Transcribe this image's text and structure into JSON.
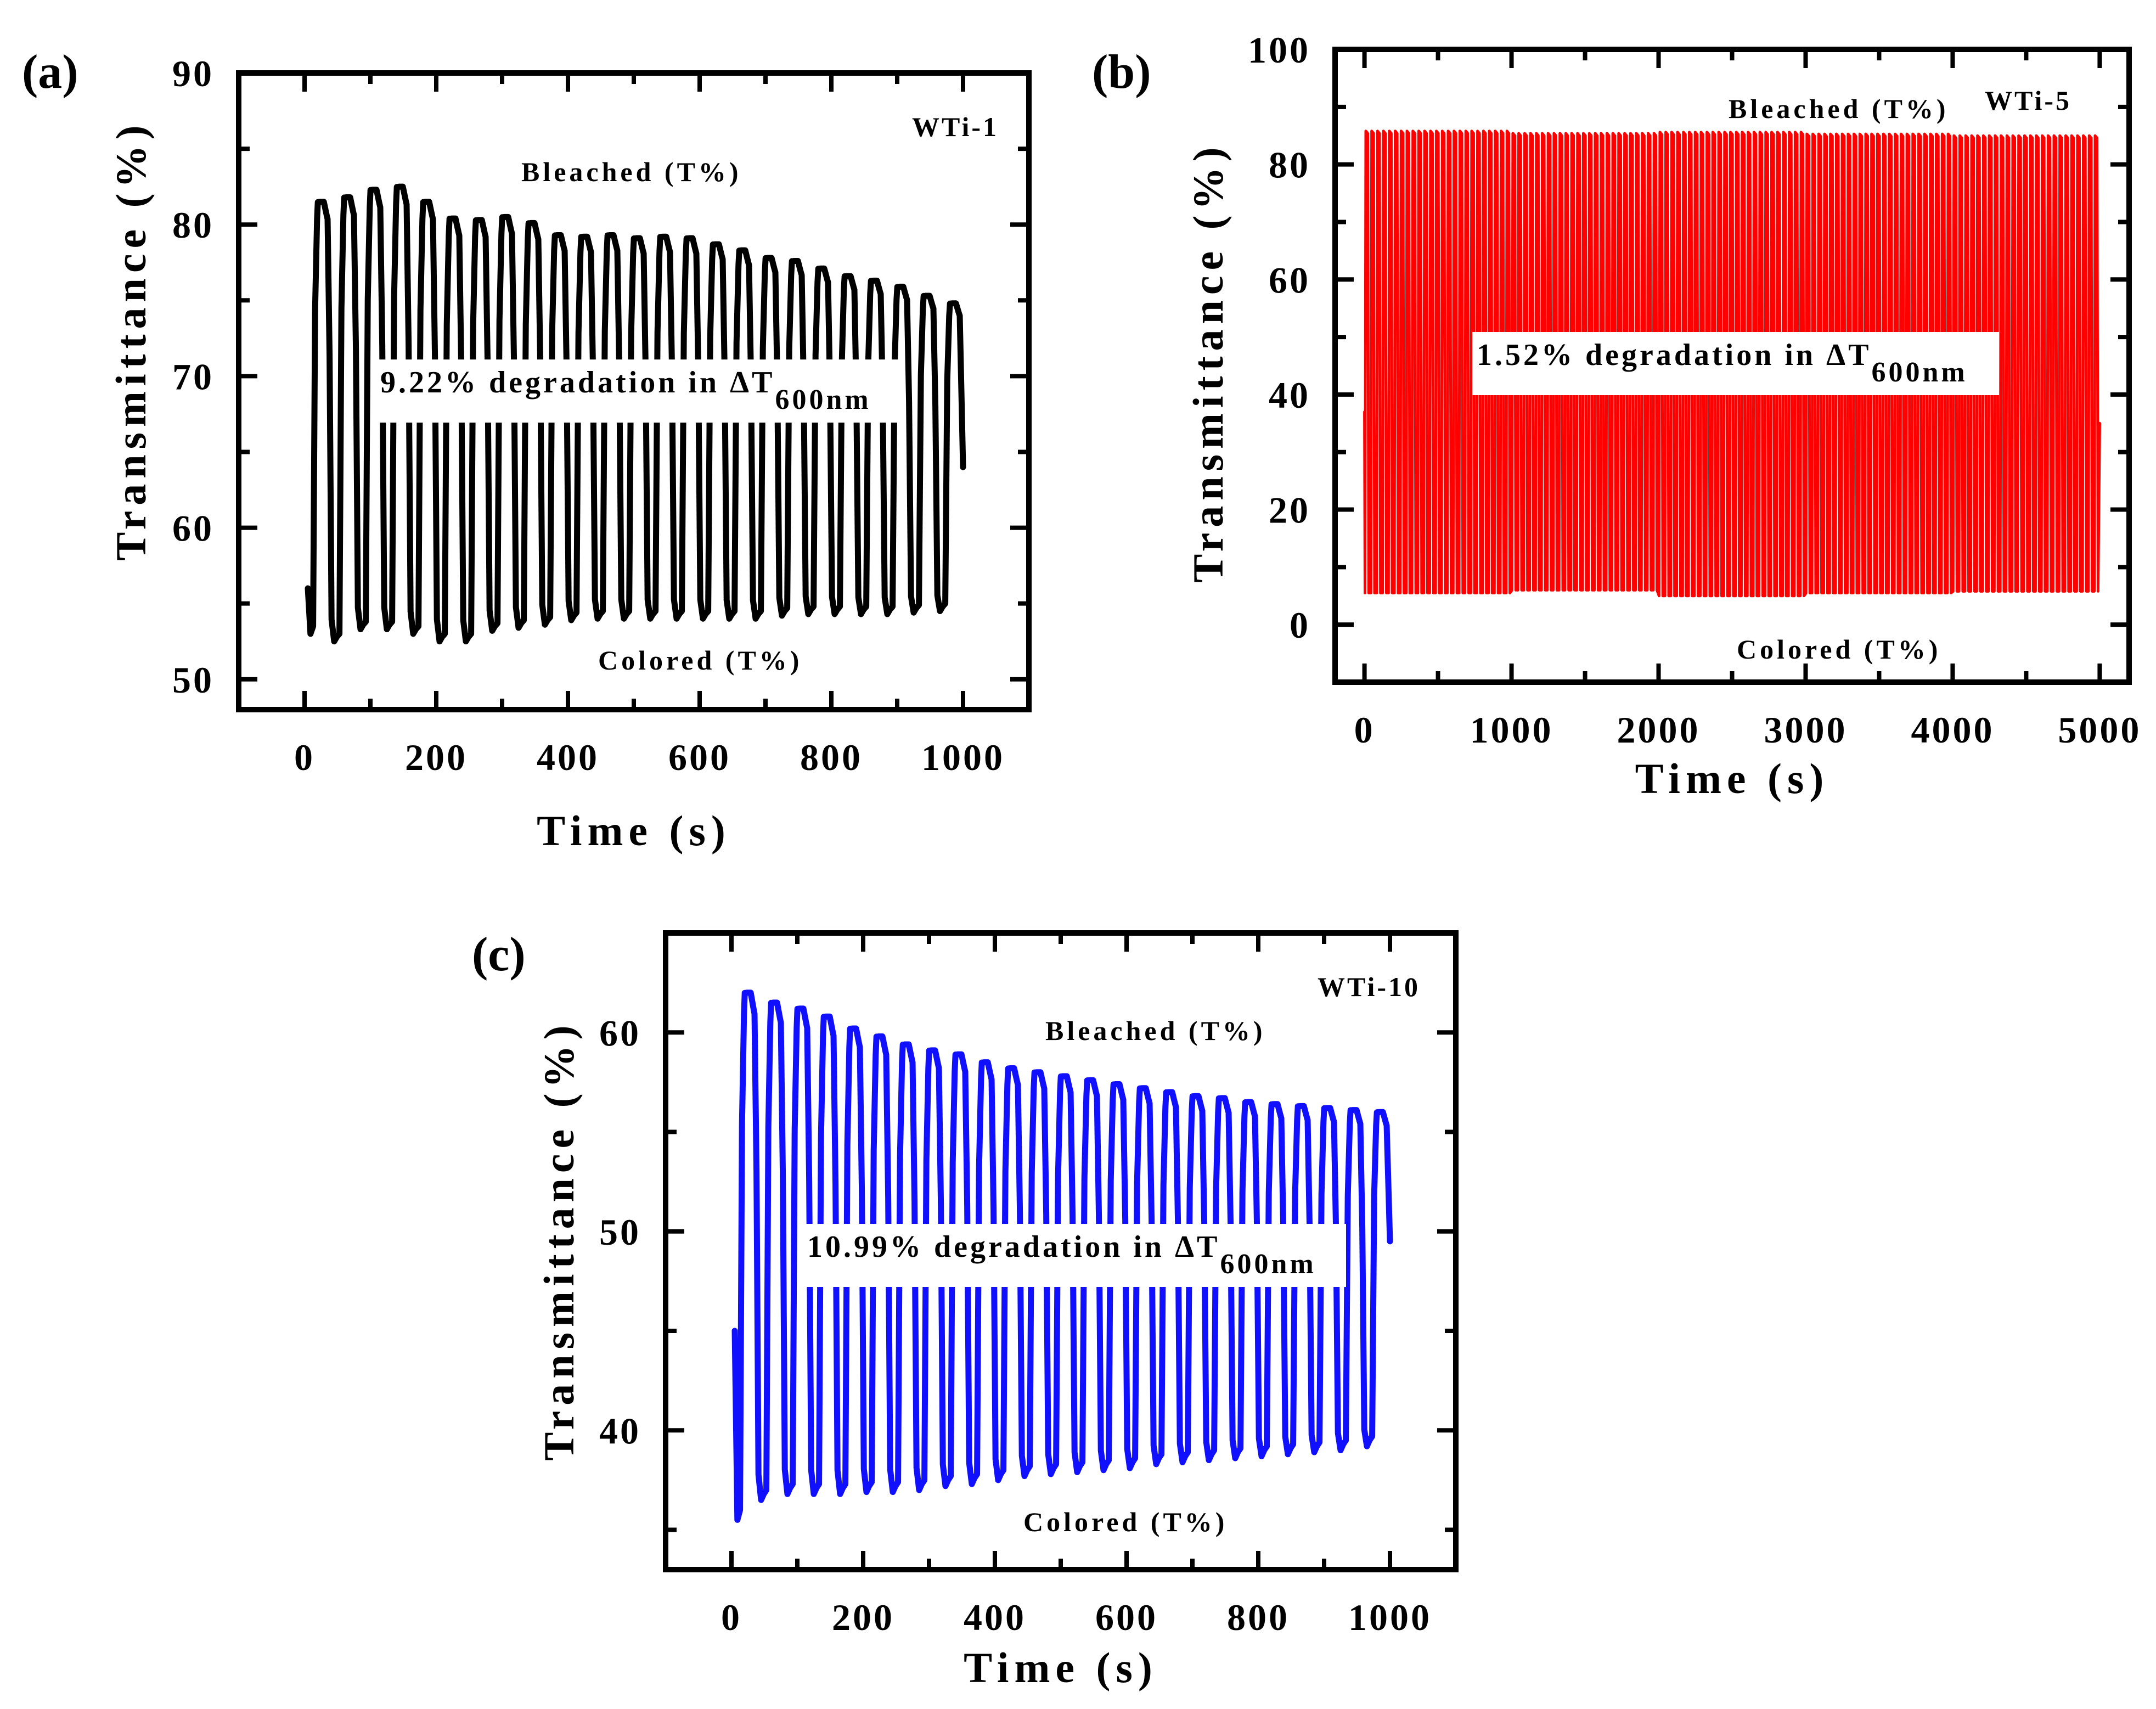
{
  "chart_data": [
    {
      "type": "line",
      "panel_label": "(a)",
      "sample": "WTi-1",
      "xlabel": "Time (s)",
      "ylabel": "Transmittance (%)",
      "xlim": [
        -100,
        1100
      ],
      "ylim": [
        48,
        90
      ],
      "xticks": [
        0,
        200,
        400,
        600,
        800,
        1000
      ],
      "xtick_labels": [
        "0",
        "200",
        "400",
        "600",
        "800",
        "1000"
      ],
      "yticks": [
        50,
        60,
        70,
        80,
        90
      ],
      "ytick_labels": [
        "50",
        "60",
        "70",
        "80",
        "90"
      ],
      "annotations": {
        "bleached": "Bleached (T%)",
        "colored": "Colored (T%)"
      },
      "degradation_text": "9.22% degradation in ΔT",
      "degradation_sub": "600nm",
      "series": [
        {
          "name": "WTi-1",
          "color": "#000000",
          "period_s": 40,
          "start_s": 5,
          "end_s": 1000,
          "start_value": 56,
          "end_value": 64,
          "bleached_peaks": [
            81.5,
            81.8,
            82.3,
            82.5,
            81.5,
            80.4,
            80.3,
            80.5,
            80.1,
            79.3,
            79.2,
            79.3,
            79.1,
            79.2,
            79.1,
            78.7,
            78.3,
            77.8,
            77.6,
            77.1,
            76.6,
            76.3,
            75.9,
            75.3,
            74.8
          ],
          "colored_minima": [
            53,
            52.5,
            53.3,
            53.3,
            53,
            52.5,
            52.5,
            53.2,
            53.4,
            53.6,
            53.9,
            54,
            54,
            54,
            54,
            54,
            54,
            54,
            54.2,
            54.3,
            54.3,
            54.3,
            54.3,
            54.4,
            54.5
          ]
        }
      ]
    },
    {
      "type": "line",
      "panel_label": "(b)",
      "sample": "WTi-5",
      "xlabel": "Time (s)",
      "ylabel": "Transmittance (%)",
      "xlim": [
        -200,
        5200
      ],
      "ylim": [
        -10,
        100
      ],
      "xticks": [
        0,
        1000,
        2000,
        3000,
        4000,
        5000
      ],
      "xtick_labels": [
        "0",
        "1000",
        "2000",
        "3000",
        "4000",
        "5000"
      ],
      "yticks": [
        0,
        20,
        40,
        60,
        80,
        100
      ],
      "ytick_labels": [
        "0",
        "20",
        "40",
        "60",
        "80",
        "100"
      ],
      "annotations": {
        "bleached": "Bleached (T%)",
        "colored": "Colored (T%)"
      },
      "degradation_text": "1.52% degradation in ΔT",
      "degradation_sub": "600nm",
      "series": [
        {
          "name": "WTi-5",
          "color": "#ff0000",
          "cycles": 125,
          "start_s": 0,
          "end_s": 5000,
          "start_value": 37,
          "end_value": 35,
          "bleached_level_segments": [
            {
              "from": 0,
              "to": 1000,
              "value": 85.8
            },
            {
              "from": 1000,
              "to": 2000,
              "value": 85.4
            },
            {
              "from": 2000,
              "to": 3000,
              "value": 85.6
            },
            {
              "from": 3000,
              "to": 4000,
              "value": 85.3
            },
            {
              "from": 4000,
              "to": 5000,
              "value": 85
            }
          ],
          "colored_level_segments": [
            {
              "from": 0,
              "to": 1000,
              "value": 5.5
            },
            {
              "from": 1000,
              "to": 2000,
              "value": 6
            },
            {
              "from": 2000,
              "to": 3000,
              "value": 5
            },
            {
              "from": 3000,
              "to": 4000,
              "value": 5.5
            },
            {
              "from": 4000,
              "to": 5000,
              "value": 5.8
            }
          ]
        }
      ]
    },
    {
      "type": "line",
      "panel_label": "(c)",
      "sample": "WTi-10",
      "xlabel": "Time (s)",
      "ylabel": "Transmittance (%)",
      "xlim": [
        -100,
        1100
      ],
      "ylim": [
        33,
        65
      ],
      "xticks": [
        0,
        200,
        400,
        600,
        800,
        1000
      ],
      "xtick_labels": [
        "0",
        "200",
        "400",
        "600",
        "800",
        "1000"
      ],
      "yticks": [
        40,
        50,
        60
      ],
      "ytick_labels": [
        "40",
        "50",
        "60"
      ],
      "annotations": {
        "bleached": "Bleached (T%)",
        "colored": "Colored (T%)"
      },
      "degradation_text": "10.99% degradation in ΔT",
      "degradation_sub": "600nm",
      "series": [
        {
          "name": "WTi-10",
          "color": "#1010ff",
          "period_s": 40,
          "start_s": 5,
          "end_s": 1000,
          "start_value": 45,
          "end_value": 49.5,
          "bleached_peaks": [
            62,
            61.5,
            61.2,
            60.8,
            60.2,
            59.8,
            59.4,
            59.1,
            58.9,
            58.5,
            58.2,
            58,
            57.8,
            57.6,
            57.4,
            57.2,
            57,
            56.8,
            56.7,
            56.5,
            56.4,
            56.3,
            56.2,
            56.1,
            56
          ],
          "colored_minima": [
            35.5,
            36.5,
            36.8,
            36.8,
            36.8,
            36.9,
            36.9,
            37,
            37.2,
            37.3,
            37.5,
            37.7,
            37.8,
            37.9,
            38,
            38.1,
            38.3,
            38.4,
            38.5,
            38.6,
            38.7,
            38.8,
            38.9,
            39,
            39.2
          ]
        }
      ]
    }
  ]
}
